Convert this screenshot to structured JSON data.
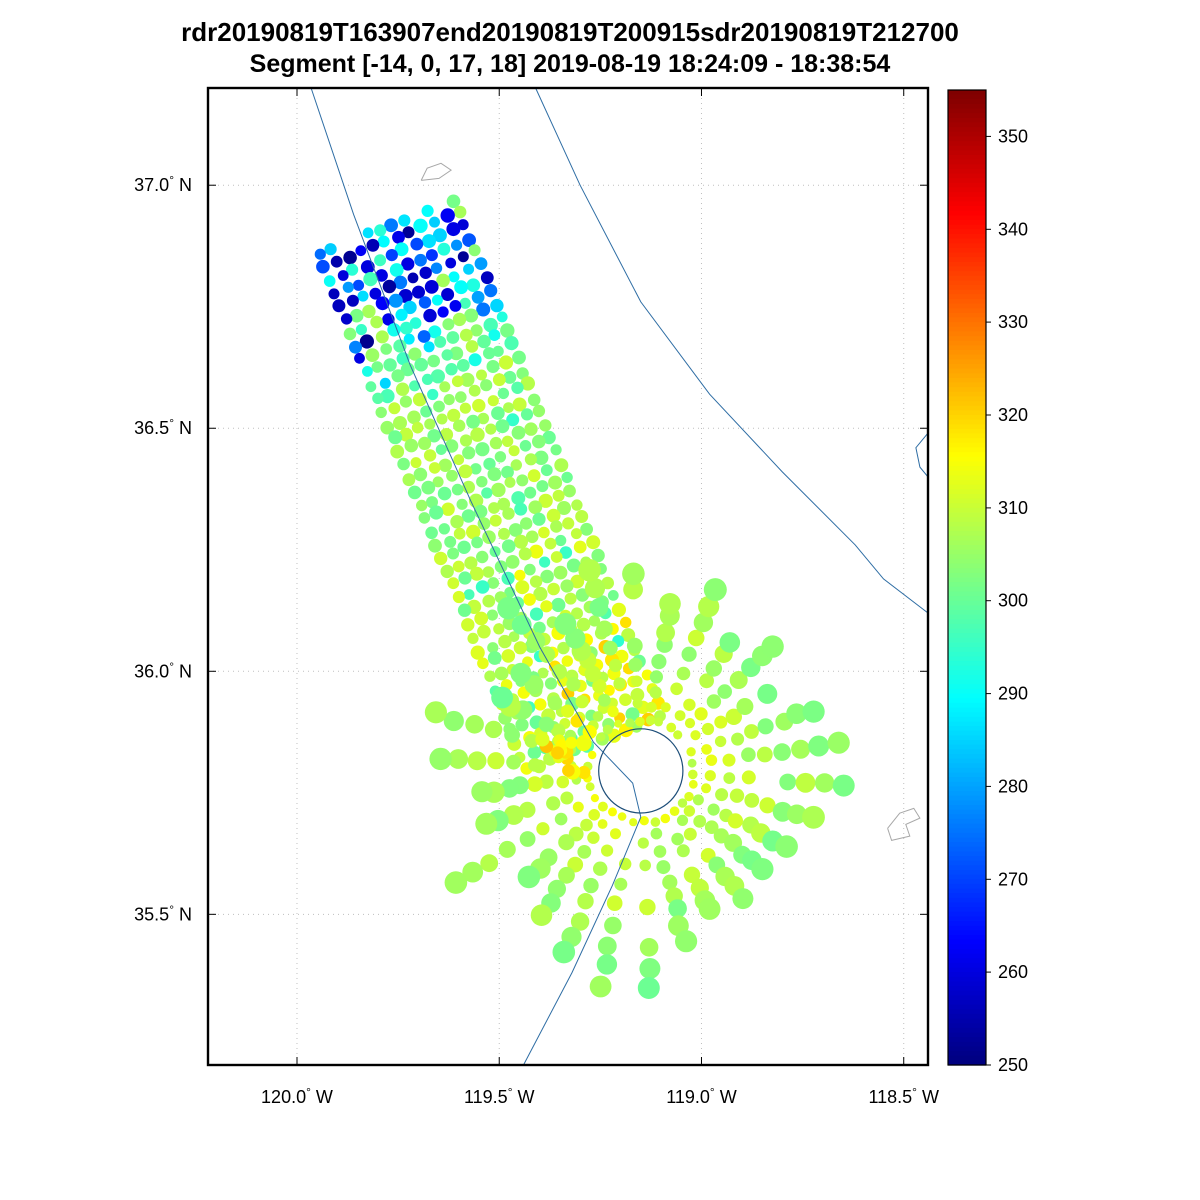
{
  "title": {
    "line1": "rdr20190819T163907end20190819T200915sdr20190819T212700",
    "line2": "Segment [-14, 0, 17, 18] 2019-08-19 18:24:09 - 18:38:54"
  },
  "chart_data": {
    "type": "scatter",
    "title": "rdr20190819T163907end20190819T200915sdr20190819T212700",
    "subtitle": "Segment [-14, 0, 17, 18] 2019-08-19 18:24:09 - 18:38:54",
    "xlabel": "",
    "ylabel": "",
    "grid": true,
    "lon_range": [
      -120.22,
      -118.44
    ],
    "lat_range": [
      35.19,
      37.2
    ],
    "x_ticks": [
      {
        "value": -120.0,
        "num": "120.0",
        "dir": "W"
      },
      {
        "value": -119.5,
        "num": "119.5",
        "dir": "W"
      },
      {
        "value": -119.0,
        "num": "119.0",
        "dir": "W"
      },
      {
        "value": -118.5,
        "num": "118.5",
        "dir": "W"
      }
    ],
    "y_ticks": [
      {
        "value": 37.0,
        "num": "37.0",
        "dir": "N"
      },
      {
        "value": 36.5,
        "num": "36.5",
        "dir": "N"
      },
      {
        "value": 36.0,
        "num": "36.0",
        "dir": "N"
      },
      {
        "value": 35.5,
        "num": "35.5",
        "dir": "N"
      }
    ],
    "colorbar": {
      "min": 250,
      "max": 355,
      "ticks": [
        250,
        260,
        270,
        280,
        290,
        300,
        310,
        320,
        330,
        340,
        350
      ],
      "colormap": "jet"
    },
    "swath": {
      "track_start": {
        "lon": -119.78,
        "lat": 36.915
      },
      "track_end": {
        "lon": -119.265,
        "lat": 35.852
      },
      "width_deg": 0.36,
      "rows": 40,
      "cols": 12,
      "cold_block_rows": 9,
      "cold_values": [
        250,
        297
      ],
      "warm_values": [
        298,
        315
      ],
      "hot_patch_values": [
        312,
        322
      ]
    },
    "fan": {
      "center": {
        "lon": -119.15,
        "lat": 35.795
      },
      "spokes": 30,
      "dots_per_spoke": 9,
      "inner_radius_deg": 0.13,
      "outer_radius_deg": [
        0.38,
        0.56
      ],
      "values": [
        300,
        318
      ]
    },
    "hotspot": {
      "center": {
        "lon": -119.35,
        "lat": 35.84
      },
      "radius_deg": 0.1,
      "count": 18,
      "values": [
        312,
        322
      ]
    },
    "range_ring": {
      "center": {
        "lon": -119.15,
        "lat": 35.795
      },
      "radius_deg": 0.104
    },
    "map_lines": [
      {
        "name": "flight-track-line",
        "color": "#2e6da4",
        "width": 1,
        "points": [
          [
            -119.965,
            37.2
          ],
          [
            -119.86,
            36.94
          ],
          [
            -119.72,
            36.63
          ],
          [
            -119.57,
            36.35
          ],
          [
            -119.4,
            36.05
          ],
          [
            -119.267,
            35.854
          ],
          [
            -119.17,
            35.77
          ],
          [
            -119.15,
            35.7
          ],
          [
            -119.22,
            35.56
          ],
          [
            -119.32,
            35.38
          ],
          [
            -119.44,
            35.19
          ]
        ]
      },
      {
        "name": "boundary-line",
        "color": "#2e6da4",
        "width": 1,
        "points": [
          [
            -119.41,
            37.2
          ],
          [
            -119.3,
            37.0
          ],
          [
            -119.15,
            36.76
          ],
          [
            -118.98,
            36.57
          ],
          [
            -118.8,
            36.41
          ],
          [
            -118.62,
            36.26
          ],
          [
            -118.55,
            36.19
          ],
          [
            -118.44,
            36.12
          ]
        ]
      },
      {
        "name": "boundary-edge-arc",
        "color": "#2e6da4",
        "width": 1,
        "points": [
          [
            -118.44,
            36.49
          ],
          [
            -118.47,
            36.46
          ],
          [
            -118.46,
            36.42
          ],
          [
            -118.44,
            36.4
          ]
        ]
      },
      {
        "name": "coast-outline-north",
        "color": "#a8a8a8",
        "width": 1,
        "points": [
          [
            -119.693,
            37.01
          ],
          [
            -119.678,
            37.035
          ],
          [
            -119.644,
            37.045
          ],
          [
            -119.619,
            37.031
          ],
          [
            -119.649,
            37.014
          ],
          [
            -119.693,
            37.01
          ]
        ]
      },
      {
        "name": "coast-outline-southeast",
        "color": "#a8a8a8",
        "width": 1,
        "points": [
          [
            -118.54,
            35.677
          ],
          [
            -118.51,
            35.708
          ],
          [
            -118.475,
            35.718
          ],
          [
            -118.46,
            35.698
          ],
          [
            -118.495,
            35.685
          ],
          [
            -118.485,
            35.661
          ],
          [
            -118.53,
            35.652
          ],
          [
            -118.54,
            35.677
          ]
        ]
      }
    ]
  },
  "colors": {
    "map_line": "#2e6da4",
    "coast_line": "#a8a8a8",
    "grid": "#bfbfbf",
    "axes": "#000000",
    "ring": "#1d4e79"
  }
}
